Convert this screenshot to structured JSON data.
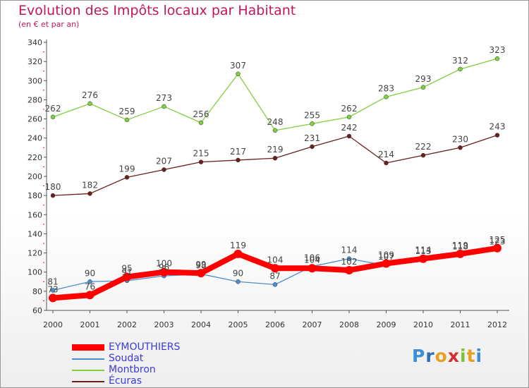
{
  "title": "Evolution des Impôts locaux par Habitant",
  "subtitle": "(en € et par an)",
  "logo": {
    "letters": [
      "P",
      "r",
      "o",
      "x",
      "i",
      "t",
      "i"
    ],
    "colors": [
      "#3a8fd8",
      "#2f6db8",
      "#e8a020",
      "#d62f2f",
      "#7bbf3a",
      "#e8a020",
      "#3a8fd8"
    ]
  },
  "chart_data": {
    "type": "line",
    "x": [
      "2000",
      "2001",
      "2002",
      "2003",
      "2004",
      "2005",
      "2006",
      "2007",
      "2008",
      "2009",
      "2010",
      "2011",
      "2012"
    ],
    "ylim": [
      60,
      340
    ],
    "yticks": [
      60,
      80,
      100,
      120,
      140,
      160,
      180,
      200,
      220,
      240,
      260,
      280,
      300,
      320,
      340
    ],
    "grid": false,
    "legend_position": "bottom-left",
    "series": [
      {
        "name": "EYMOUTHIERS",
        "color": "#ff0000",
        "values": [
          73,
          76,
          95,
          100,
          99,
          119,
          104,
          104,
          102,
          109,
          114,
          119,
          125
        ]
      },
      {
        "name": "Soudat",
        "color": "#4d8ecf",
        "values": [
          81,
          90,
          91,
          96,
          98,
          90,
          87,
          106,
          114,
          107,
          113,
          118,
          123
        ]
      },
      {
        "name": "Montbron",
        "color": "#7fcf3f",
        "values": [
          262,
          276,
          259,
          273,
          256,
          307,
          248,
          255,
          262,
          283,
          293,
          312,
          323
        ]
      },
      {
        "name": "Écuras",
        "color": "#6b1f1f",
        "values": [
          180,
          182,
          199,
          207,
          215,
          217,
          219,
          231,
          242,
          214,
          222,
          230,
          243
        ]
      }
    ]
  }
}
